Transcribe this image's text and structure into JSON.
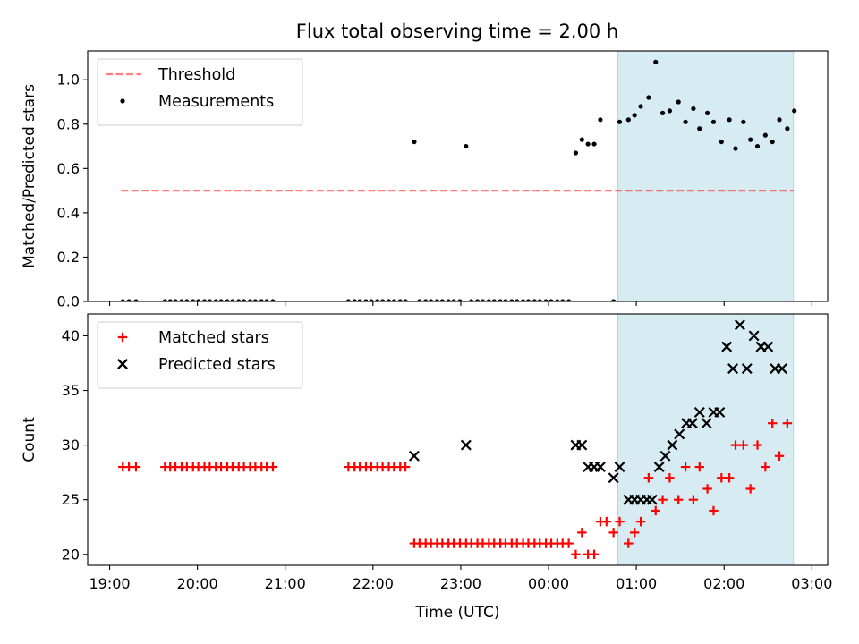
{
  "chart_data": [
    {
      "type": "scatter",
      "title": "Flux total observing time = 2.00 h",
      "xlabel": "",
      "ylabel": "Matched/Predicted stars",
      "ylim": [
        0,
        1.13
      ],
      "yticks": [
        0.0,
        0.2,
        0.4,
        0.6,
        0.8,
        1.0
      ],
      "ytick_labels": [
        "0.0",
        "0.2",
        "0.4",
        "0.6",
        "0.8",
        "1.0"
      ],
      "x_unit": "hours since 19:00 UTC",
      "xlim": [
        -0.25,
        8.18
      ],
      "legend_position": "upper-left",
      "shaded_span": {
        "x0": 5.79,
        "x1": 7.79,
        "color": "#add8e6"
      },
      "threshold": {
        "name": "Threshold",
        "y": 0.5,
        "x0": 0.13,
        "x1": 7.79,
        "color": "#ff0000"
      },
      "series": [
        {
          "name": "Measurements",
          "marker": "dot",
          "color": "#000000",
          "points": [
            [
              0.15,
              0.0
            ],
            [
              0.22,
              0.0
            ],
            [
              0.3,
              0.0
            ],
            [
              0.63,
              0.0
            ],
            [
              0.69,
              0.0
            ],
            [
              0.75,
              0.0
            ],
            [
              0.82,
              0.0
            ],
            [
              0.88,
              0.0
            ],
            [
              0.95,
              0.0
            ],
            [
              1.01,
              0.0
            ],
            [
              1.08,
              0.0
            ],
            [
              1.14,
              0.0
            ],
            [
              1.21,
              0.0
            ],
            [
              1.27,
              0.0
            ],
            [
              1.34,
              0.0
            ],
            [
              1.4,
              0.0
            ],
            [
              1.47,
              0.0
            ],
            [
              1.53,
              0.0
            ],
            [
              1.6,
              0.0
            ],
            [
              1.66,
              0.0
            ],
            [
              1.73,
              0.0
            ],
            [
              1.79,
              0.0
            ],
            [
              1.86,
              0.0
            ],
            [
              2.72,
              0.0
            ],
            [
              2.79,
              0.0
            ],
            [
              2.85,
              0.0
            ],
            [
              2.92,
              0.0
            ],
            [
              2.98,
              0.0
            ],
            [
              3.05,
              0.0
            ],
            [
              3.11,
              0.0
            ],
            [
              3.18,
              0.0
            ],
            [
              3.24,
              0.0
            ],
            [
              3.31,
              0.0
            ],
            [
              3.37,
              0.0
            ],
            [
              3.47,
              0.72
            ],
            [
              3.53,
              0.0
            ],
            [
              3.6,
              0.0
            ],
            [
              3.66,
              0.0
            ],
            [
              3.73,
              0.0
            ],
            [
              3.79,
              0.0
            ],
            [
              3.86,
              0.0
            ],
            [
              3.92,
              0.0
            ],
            [
              3.99,
              0.0
            ],
            [
              4.06,
              0.7
            ],
            [
              4.12,
              0.0
            ],
            [
              4.19,
              0.0
            ],
            [
              4.25,
              0.0
            ],
            [
              4.32,
              0.0
            ],
            [
              4.38,
              0.0
            ],
            [
              4.45,
              0.0
            ],
            [
              4.51,
              0.0
            ],
            [
              4.58,
              0.0
            ],
            [
              4.64,
              0.0
            ],
            [
              4.71,
              0.0
            ],
            [
              4.77,
              0.0
            ],
            [
              4.84,
              0.0
            ],
            [
              4.9,
              0.0
            ],
            [
              4.97,
              0.0
            ],
            [
              5.03,
              0.0
            ],
            [
              5.1,
              0.0
            ],
            [
              5.16,
              0.0
            ],
            [
              5.23,
              0.0
            ],
            [
              5.31,
              0.67
            ],
            [
              5.38,
              0.73
            ],
            [
              5.45,
              0.71
            ],
            [
              5.52,
              0.71
            ],
            [
              5.59,
              0.82
            ],
            [
              5.74,
              0.0
            ],
            [
              5.81,
              0.81
            ],
            [
              5.91,
              0.82
            ],
            [
              5.98,
              0.84
            ],
            [
              6.05,
              0.88
            ],
            [
              6.14,
              0.92
            ],
            [
              6.22,
              1.08
            ],
            [
              6.3,
              0.85
            ],
            [
              6.38,
              0.86
            ],
            [
              6.48,
              0.9
            ],
            [
              6.56,
              0.81
            ],
            [
              6.65,
              0.87
            ],
            [
              6.72,
              0.78
            ],
            [
              6.81,
              0.85
            ],
            [
              6.88,
              0.81
            ],
            [
              6.97,
              0.72
            ],
            [
              7.06,
              0.82
            ],
            [
              7.13,
              0.69
            ],
            [
              7.22,
              0.81
            ],
            [
              7.3,
              0.73
            ],
            [
              7.38,
              0.7
            ],
            [
              7.47,
              0.75
            ],
            [
              7.55,
              0.72
            ],
            [
              7.63,
              0.82
            ],
            [
              7.72,
              0.78
            ],
            [
              7.8,
              0.86
            ]
          ]
        }
      ]
    },
    {
      "type": "scatter",
      "title": "",
      "xlabel": "Time (UTC)",
      "ylabel": "Count",
      "ylim": [
        19,
        42
      ],
      "yticks": [
        20,
        25,
        30,
        35,
        40
      ],
      "ytick_labels": [
        "20",
        "25",
        "30",
        "35",
        "40"
      ],
      "x_unit": "hours since 19:00 UTC",
      "xlim": [
        -0.25,
        8.18
      ],
      "xticks": [
        0,
        1,
        2,
        3,
        4,
        5,
        6,
        7,
        8
      ],
      "xtick_labels": [
        "19:00",
        "20:00",
        "21:00",
        "22:00",
        "23:00",
        "00:00",
        "01:00",
        "02:00",
        "03:00"
      ],
      "legend_position": "upper-left",
      "shaded_span": {
        "x0": 5.79,
        "x1": 7.79,
        "color": "#add8e6"
      },
      "series": [
        {
          "name": "Matched stars",
          "marker": "plus",
          "color": "#ff0000",
          "points": [
            [
              0.15,
              28
            ],
            [
              0.22,
              28
            ],
            [
              0.3,
              28
            ],
            [
              0.63,
              28
            ],
            [
              0.69,
              28
            ],
            [
              0.75,
              28
            ],
            [
              0.82,
              28
            ],
            [
              0.88,
              28
            ],
            [
              0.95,
              28
            ],
            [
              1.01,
              28
            ],
            [
              1.08,
              28
            ],
            [
              1.14,
              28
            ],
            [
              1.21,
              28
            ],
            [
              1.27,
              28
            ],
            [
              1.34,
              28
            ],
            [
              1.4,
              28
            ],
            [
              1.47,
              28
            ],
            [
              1.53,
              28
            ],
            [
              1.6,
              28
            ],
            [
              1.66,
              28
            ],
            [
              1.73,
              28
            ],
            [
              1.79,
              28
            ],
            [
              1.86,
              28
            ],
            [
              2.72,
              28
            ],
            [
              2.79,
              28
            ],
            [
              2.85,
              28
            ],
            [
              2.92,
              28
            ],
            [
              2.98,
              28
            ],
            [
              3.05,
              28
            ],
            [
              3.11,
              28
            ],
            [
              3.18,
              28
            ],
            [
              3.24,
              28
            ],
            [
              3.31,
              28
            ],
            [
              3.37,
              28
            ],
            [
              3.47,
              21
            ],
            [
              3.53,
              21
            ],
            [
              3.6,
              21
            ],
            [
              3.66,
              21
            ],
            [
              3.73,
              21
            ],
            [
              3.79,
              21
            ],
            [
              3.86,
              21
            ],
            [
              3.92,
              21
            ],
            [
              3.99,
              21
            ],
            [
              4.06,
              21
            ],
            [
              4.12,
              21
            ],
            [
              4.19,
              21
            ],
            [
              4.25,
              21
            ],
            [
              4.32,
              21
            ],
            [
              4.38,
              21
            ],
            [
              4.45,
              21
            ],
            [
              4.51,
              21
            ],
            [
              4.58,
              21
            ],
            [
              4.64,
              21
            ],
            [
              4.71,
              21
            ],
            [
              4.77,
              21
            ],
            [
              4.84,
              21
            ],
            [
              4.9,
              21
            ],
            [
              4.97,
              21
            ],
            [
              5.03,
              21
            ],
            [
              5.1,
              21
            ],
            [
              5.16,
              21
            ],
            [
              5.23,
              21
            ],
            [
              5.31,
              20
            ],
            [
              5.38,
              22
            ],
            [
              5.45,
              20
            ],
            [
              5.52,
              20
            ],
            [
              5.59,
              23
            ],
            [
              5.66,
              23
            ],
            [
              5.74,
              22
            ],
            [
              5.81,
              23
            ],
            [
              5.91,
              21
            ],
            [
              5.98,
              22
            ],
            [
              6.05,
              23
            ],
            [
              6.14,
              27
            ],
            [
              6.22,
              24
            ],
            [
              6.3,
              25
            ],
            [
              6.38,
              27
            ],
            [
              6.48,
              25
            ],
            [
              6.56,
              28
            ],
            [
              6.65,
              25
            ],
            [
              6.72,
              28
            ],
            [
              6.81,
              26
            ],
            [
              6.88,
              24
            ],
            [
              6.97,
              27
            ],
            [
              7.06,
              27
            ],
            [
              7.13,
              30
            ],
            [
              7.22,
              30
            ],
            [
              7.3,
              26
            ],
            [
              7.38,
              30
            ],
            [
              7.47,
              28
            ],
            [
              7.55,
              32
            ],
            [
              7.63,
              29
            ],
            [
              7.72,
              32
            ]
          ]
        },
        {
          "name": "Predicted stars",
          "marker": "x",
          "color": "#000000",
          "points": [
            [
              3.47,
              29
            ],
            [
              4.06,
              30
            ],
            [
              5.31,
              30
            ],
            [
              5.38,
              30
            ],
            [
              5.45,
              28
            ],
            [
              5.52,
              28
            ],
            [
              5.59,
              28
            ],
            [
              5.74,
              27
            ],
            [
              5.81,
              28
            ],
            [
              5.91,
              25
            ],
            [
              5.98,
              25
            ],
            [
              6.05,
              25
            ],
            [
              6.12,
              25
            ],
            [
              6.18,
              25
            ],
            [
              6.26,
              28
            ],
            [
              6.33,
              29
            ],
            [
              6.41,
              30
            ],
            [
              6.49,
              31
            ],
            [
              6.57,
              32
            ],
            [
              6.64,
              32
            ],
            [
              6.72,
              33
            ],
            [
              6.8,
              32
            ],
            [
              6.88,
              33
            ],
            [
              6.95,
              33
            ],
            [
              7.03,
              39
            ],
            [
              7.1,
              37
            ],
            [
              7.18,
              41
            ],
            [
              7.26,
              37
            ],
            [
              7.34,
              40
            ],
            [
              7.42,
              39
            ],
            [
              7.5,
              39
            ],
            [
              7.58,
              37
            ],
            [
              7.66,
              37
            ]
          ]
        }
      ]
    }
  ]
}
